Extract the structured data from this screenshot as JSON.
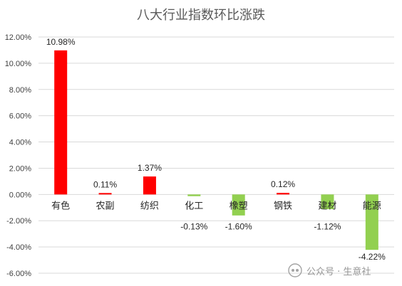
{
  "chart_data": {
    "type": "bar",
    "title": "八大行业指数环比涨跌",
    "categories": [
      "有色",
      "农副",
      "纺织",
      "化工",
      "橡塑",
      "钢铁",
      "建材",
      "能源"
    ],
    "values": [
      10.98,
      0.11,
      1.37,
      -0.13,
      -1.6,
      0.12,
      -1.12,
      -4.22
    ],
    "data_labels": [
      "10.98%",
      "0.11%",
      "1.37%",
      "-0.13%",
      "-1.60%",
      "0.12%",
      "-1.12%",
      "-4.22%"
    ],
    "ylim": [
      -6,
      12
    ],
    "yticks": [
      12,
      10,
      8,
      6,
      4,
      2,
      0,
      -2,
      -4,
      -6
    ],
    "ytick_labels": [
      "12.00%",
      "10.00%",
      "8.00%",
      "6.00%",
      "4.00%",
      "2.00%",
      "0.00%",
      "-2.00%",
      "-4.00%",
      "-6.00%"
    ],
    "grid": true,
    "colors": {
      "positive": "#ff0000",
      "negative": "#92d050",
      "grid": "#d9d9d9",
      "text": "#404040",
      "title": "#595959"
    }
  },
  "watermark": {
    "text": "公众号 · 生意社",
    "icon": "wechat-icon"
  }
}
